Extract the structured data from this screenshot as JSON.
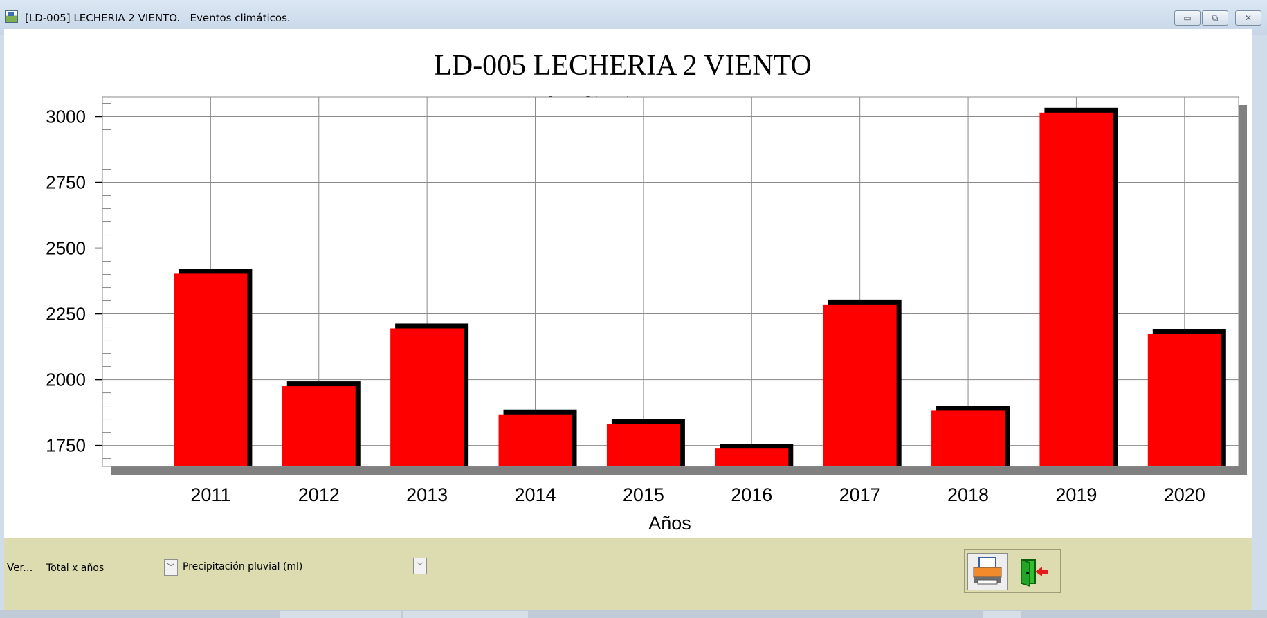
{
  "window": {
    "title": "[LD-005] LECHERIA 2 VIENTO.   Eventos climáticos.",
    "buttons": {
      "minimize": "▭",
      "restore": "⧉",
      "close": "✕"
    }
  },
  "controls": {
    "ver_label": "Ver...",
    "mode_value": "Total x años",
    "variable_value": "Precipitación pluvial (ml)"
  },
  "toolbar": {
    "print_icon": "printer-icon",
    "exit_icon": "exit-door-icon"
  },
  "colors": {
    "bar": "#ff0000",
    "bar_shadow": "#000000",
    "plot_shadow": "#808080",
    "grid": "#8a8a8a",
    "control_bar": "#dcdcb0"
  },
  "chart_data": {
    "type": "bar",
    "title": "LD-005  LECHERIA 2 VIENTO",
    "subtitle": "P. pluvial(mm)",
    "xlabel": "Años",
    "ylabel": "",
    "categories": [
      "2011",
      "2012",
      "2013",
      "2014",
      "2015",
      "2016",
      "2017",
      "2018",
      "2019",
      "2020"
    ],
    "values": [
      2403,
      1975,
      2195,
      1868,
      1832,
      1738,
      2286,
      1882,
      3015,
      2173
    ],
    "yticks": [
      1750,
      2000,
      2250,
      2500,
      2750,
      3000
    ],
    "ylim": [
      1670,
      3075
    ],
    "grid": true,
    "legend": "none"
  }
}
